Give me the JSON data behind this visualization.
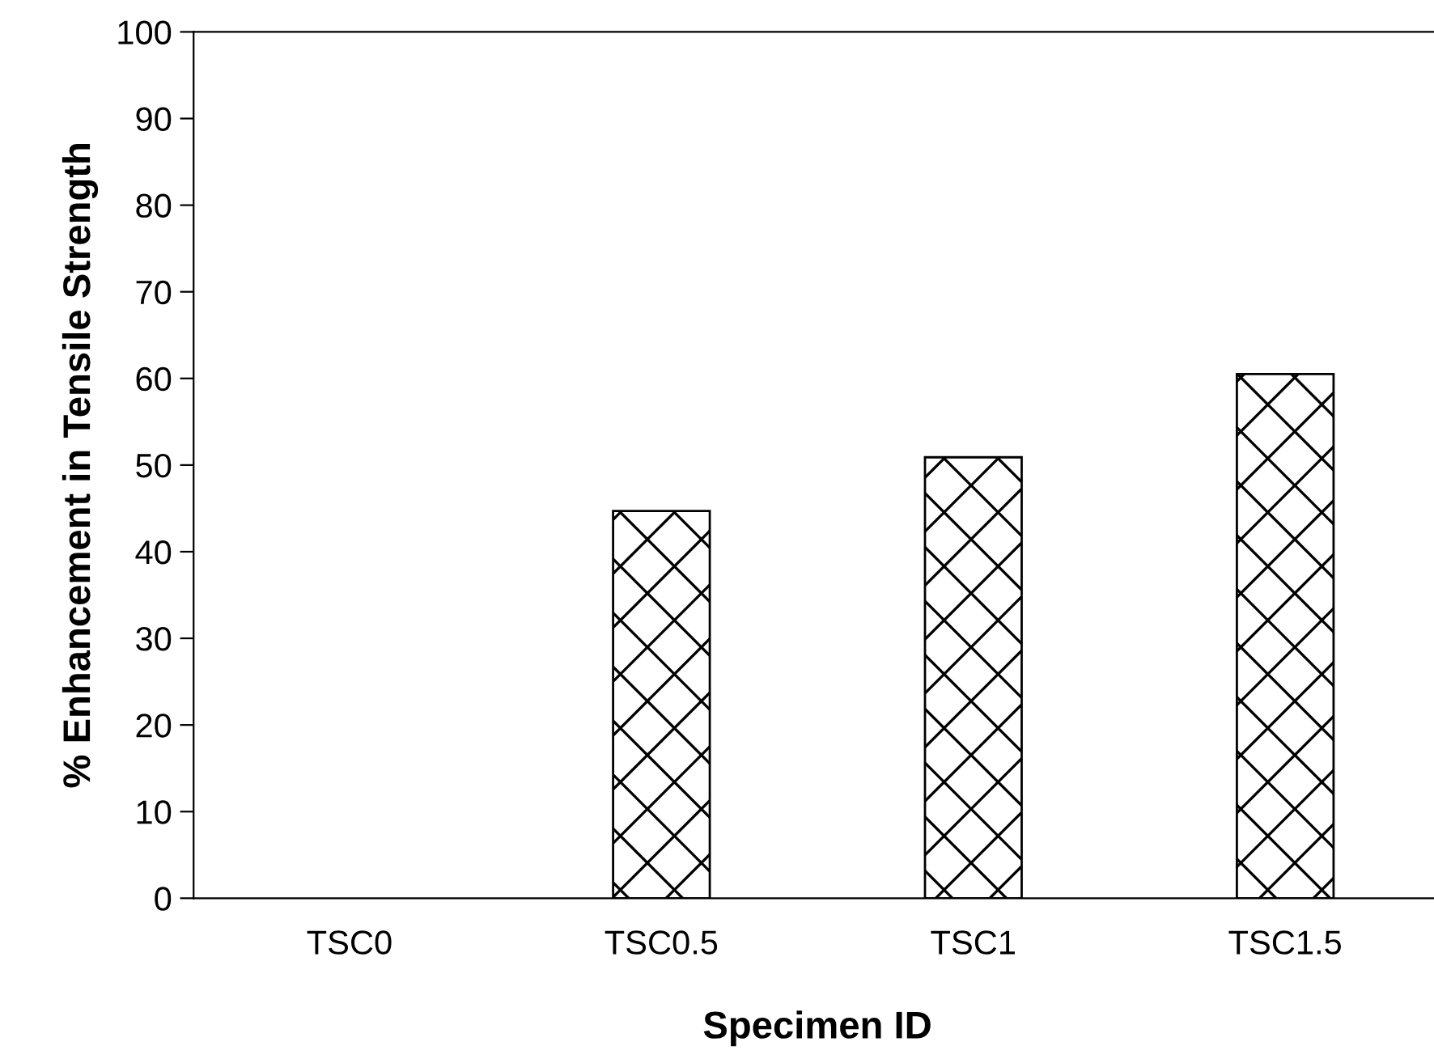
{
  "chart_data": {
    "type": "bar",
    "xlabel": "Specimen ID",
    "ylabel": "% Enhancement in Tensile Strength",
    "categories": [
      "TSC0",
      "TSC0.5",
      "TSC1",
      "TSC1.5"
    ],
    "values": [
      0,
      44.7,
      50.9,
      60.5
    ],
    "color": "#000000",
    "ylim": [
      0,
      100
    ],
    "yticks": [
      0,
      10,
      20,
      30,
      40,
      50,
      60,
      70,
      80,
      90,
      100
    ],
    "grid": false,
    "legend": false
  }
}
